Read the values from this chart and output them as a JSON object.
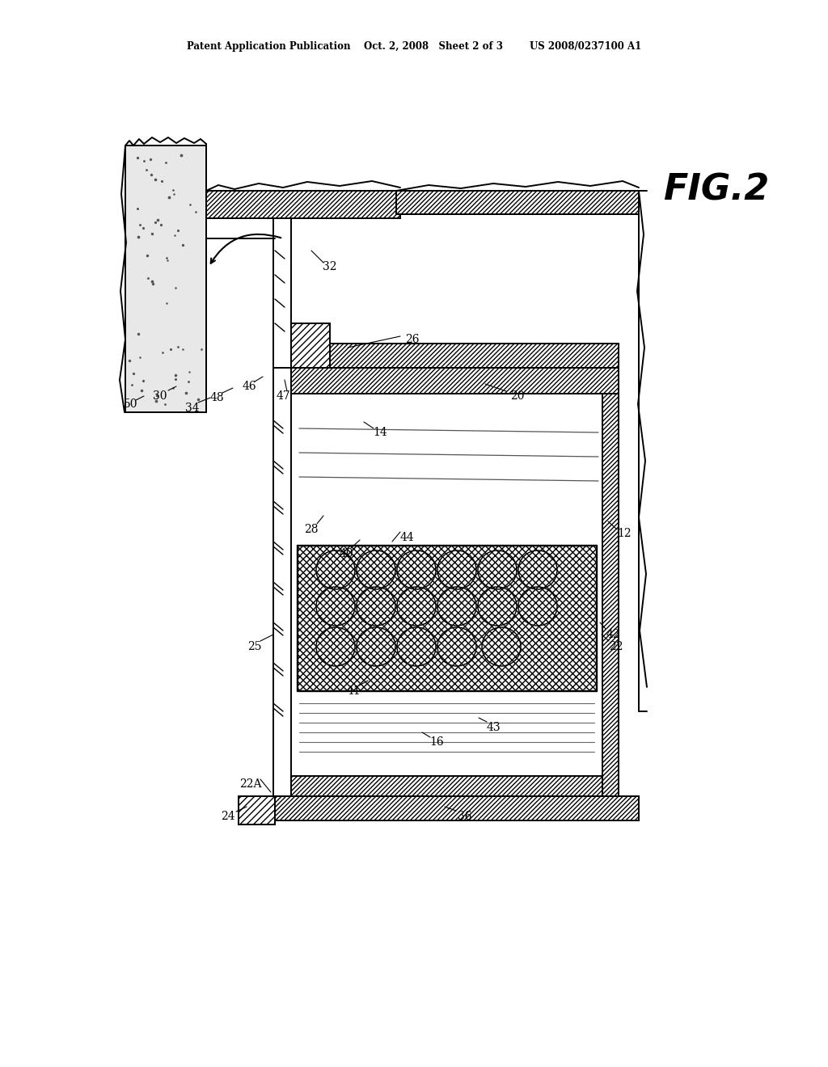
{
  "bg_color": "#ffffff",
  "title_line": "Patent Application Publication    Oct. 2, 2008   Sheet 2 of 3        US 2008/0237100 A1",
  "fig_label": "FIG.2",
  "line_color": "#000000",
  "hatch_color": "#000000"
}
